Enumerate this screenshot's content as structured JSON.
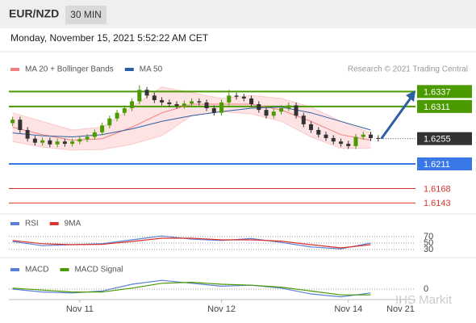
{
  "header": {
    "symbol": "EUR/NZD",
    "timeframe": "30 MIN",
    "datetime": "Monday, November 15, 2021 5:52:22 AM CET"
  },
  "watermark": "IHS Markit",
  "chart_data": [
    {
      "type": "candlestick",
      "credit": "Research © 2021 Trading Central",
      "up_color": "#4a9a00",
      "down_color": "#333333",
      "x": [
        0,
        1,
        2,
        3,
        4,
        5,
        6,
        7,
        8,
        9,
        10,
        11,
        12,
        13,
        14,
        15,
        16,
        17,
        18,
        19,
        20,
        21,
        22,
        23,
        24,
        25,
        26,
        27,
        28,
        29,
        30,
        31,
        32,
        33,
        34,
        35,
        36,
        37,
        38,
        39,
        40,
        41,
        42,
        43,
        44,
        45,
        46,
        47,
        48,
        49
      ],
      "open": [
        1.6282,
        1.6288,
        1.627,
        1.6255,
        1.6248,
        1.6252,
        1.6245,
        1.625,
        1.6246,
        1.625,
        1.6254,
        1.6258,
        1.6266,
        1.6278,
        1.629,
        1.63,
        1.6308,
        1.632,
        1.634,
        1.633,
        1.6322,
        1.6318,
        1.6315,
        1.6312,
        1.6316,
        1.632,
        1.6318,
        1.6308,
        1.63,
        1.6318,
        1.633,
        1.6328,
        1.6325,
        1.6315,
        1.6305,
        1.6295,
        1.6302,
        1.6308,
        1.6313,
        1.6295,
        1.628,
        1.627,
        1.6262,
        1.6256,
        1.625,
        1.6246,
        1.6242,
        1.6258,
        1.6262,
        1.6256
      ],
      "high": [
        1.6293,
        1.6293,
        1.6275,
        1.626,
        1.6257,
        1.6257,
        1.6255,
        1.6255,
        1.6255,
        1.6259,
        1.6263,
        1.6271,
        1.6283,
        1.6295,
        1.6305,
        1.6313,
        1.6325,
        1.6348,
        1.6345,
        1.6335,
        1.6327,
        1.6323,
        1.632,
        1.6321,
        1.6325,
        1.6325,
        1.6323,
        1.6313,
        1.6323,
        1.634,
        1.6335,
        1.6333,
        1.633,
        1.632,
        1.631,
        1.6307,
        1.6313,
        1.6318,
        1.6318,
        1.63,
        1.6285,
        1.6275,
        1.6267,
        1.6261,
        1.6255,
        1.6251,
        1.6263,
        1.6267,
        1.6267,
        1.6261
      ],
      "low": [
        1.6277,
        1.6265,
        1.625,
        1.6243,
        1.6243,
        1.624,
        1.624,
        1.6241,
        1.6241,
        1.6245,
        1.6249,
        1.6253,
        1.6261,
        1.6273,
        1.6285,
        1.6295,
        1.6303,
        1.6315,
        1.6325,
        1.6317,
        1.6313,
        1.631,
        1.6307,
        1.6307,
        1.6311,
        1.6313,
        1.6303,
        1.6295,
        1.6295,
        1.6313,
        1.6323,
        1.632,
        1.631,
        1.63,
        1.629,
        1.629,
        1.6297,
        1.6303,
        1.629,
        1.6275,
        1.6265,
        1.6257,
        1.6251,
        1.6245,
        1.6241,
        1.6237,
        1.6237,
        1.6253,
        1.6251,
        1.625
      ],
      "close": [
        1.6288,
        1.627,
        1.6255,
        1.6248,
        1.6252,
        1.6245,
        1.625,
        1.6246,
        1.625,
        1.6254,
        1.6258,
        1.6266,
        1.6278,
        1.629,
        1.63,
        1.6308,
        1.632,
        1.634,
        1.633,
        1.6322,
        1.6318,
        1.6315,
        1.6312,
        1.6316,
        1.632,
        1.6318,
        1.6308,
        1.63,
        1.6318,
        1.633,
        1.6328,
        1.6325,
        1.6315,
        1.6305,
        1.6295,
        1.6302,
        1.6308,
        1.6313,
        1.6295,
        1.628,
        1.627,
        1.6262,
        1.6256,
        1.625,
        1.6246,
        1.6242,
        1.6258,
        1.6262,
        1.6256,
        1.6255
      ],
      "overlay_x": [
        0,
        4,
        8,
        12,
        16,
        20,
        24,
        28,
        32,
        36,
        40,
        44,
        48
      ],
      "overlays": [
        {
          "name": "MA 20 + Bollinger Bands",
          "color": "#f08080",
          "band_color": "#fde3e3",
          "values": [
            1.6275,
            1.6262,
            1.6252,
            1.6255,
            1.6275,
            1.63,
            1.6315,
            1.6315,
            1.6315,
            1.6305,
            1.6285,
            1.6262,
            1.6252
          ],
          "upper": [
            1.63,
            1.6285,
            1.627,
            1.6275,
            1.631,
            1.6345,
            1.6335,
            1.6325,
            1.633,
            1.6325,
            1.631,
            1.6285,
            1.6265
          ],
          "lower": [
            1.625,
            1.624,
            1.6235,
            1.6236,
            1.6245,
            1.626,
            1.6295,
            1.6302,
            1.6298,
            1.6285,
            1.6258,
            1.6238,
            1.6238
          ]
        },
        {
          "name": "MA 50",
          "color": "#2e5fa3",
          "values": [
            1.6265,
            1.626,
            1.6258,
            1.6262,
            1.6272,
            1.6285,
            1.6295,
            1.6302,
            1.6308,
            1.631,
            1.63,
            1.6285,
            1.627
          ]
        }
      ],
      "levels": [
        {
          "value": 1.6337,
          "color": "#4a9a00",
          "kind": "box"
        },
        {
          "value": 1.6311,
          "color": "#4a9a00",
          "kind": "box"
        },
        {
          "value": 1.6255,
          "color": "#333333",
          "kind": "current"
        },
        {
          "value": 1.6211,
          "color": "#3b78e7",
          "kind": "box"
        },
        {
          "value": 1.6168,
          "color": "#d9342b",
          "kind": "text"
        },
        {
          "value": 1.6143,
          "color": "#d9342b",
          "kind": "text"
        }
      ],
      "xlim": [
        -0.5,
        54
      ],
      "ylim": [
        1.6128,
        1.636
      ],
      "xticks": [
        {
          "value": 9,
          "label": "Nov 11"
        },
        {
          "value": 28,
          "label": "Nov 12"
        },
        {
          "value": 45,
          "label": "Nov 14"
        },
        {
          "value": 52,
          "label": "Nov 21"
        }
      ]
    },
    {
      "type": "line",
      "x": [
        0,
        4,
        8,
        12,
        16,
        20,
        24,
        28,
        32,
        36,
        40,
        44,
        48
      ],
      "xlim": [
        -0.5,
        54
      ],
      "ylim": [
        0,
        100
      ],
      "yticks": [
        70,
        50,
        30
      ],
      "series": [
        {
          "name": "RSI",
          "color": "#5b7fd6",
          "values": [
            55,
            42,
            45,
            48,
            60,
            72,
            62,
            58,
            64,
            52,
            38,
            32,
            50
          ]
        },
        {
          "name": "9MA",
          "color": "#d9342b",
          "values": [
            58,
            48,
            45,
            46,
            55,
            65,
            65,
            60,
            60,
            56,
            45,
            35,
            45
          ]
        }
      ]
    },
    {
      "type": "line",
      "x": [
        0,
        4,
        8,
        12,
        16,
        20,
        24,
        28,
        32,
        36,
        40,
        44,
        48
      ],
      "xlim": [
        -0.5,
        54
      ],
      "ylim": [
        -0.001,
        0.003
      ],
      "yticks": [
        0
      ],
      "series": [
        {
          "name": "MACD",
          "color": "#5b7fd6",
          "values": [
            0.0,
            -0.0003,
            -0.0004,
            -0.0002,
            0.0005,
            0.0009,
            0.0006,
            0.0003,
            0.0004,
            0.0001,
            -0.0005,
            -0.0008,
            -0.0004
          ]
        },
        {
          "name": "MACD Signal",
          "color": "#4a9a00",
          "values": [
            0.0001,
            -0.0001,
            -0.0003,
            -0.0003,
            0.0001,
            0.0006,
            0.0007,
            0.0005,
            0.0004,
            0.0002,
            -0.0002,
            -0.0006,
            -0.0006
          ]
        }
      ]
    }
  ]
}
